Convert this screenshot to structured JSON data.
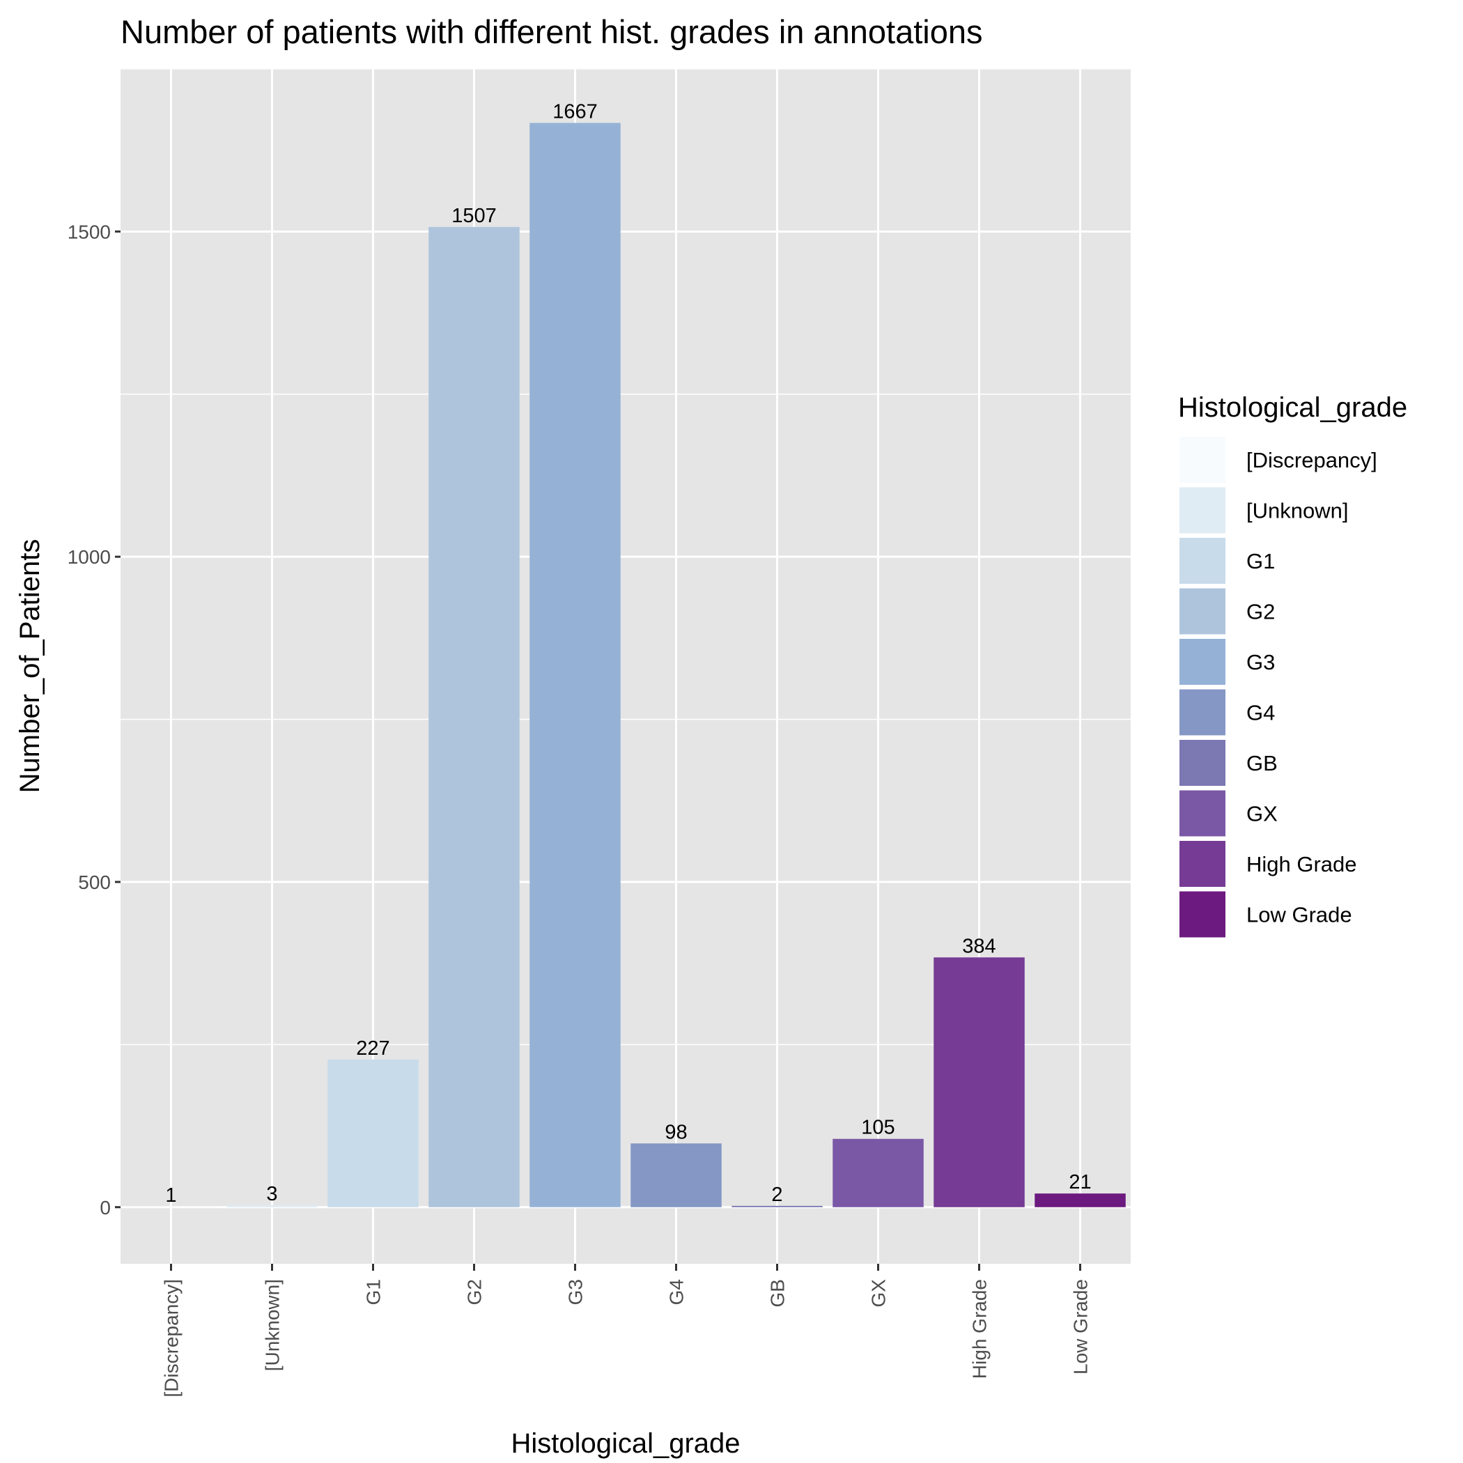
{
  "chart_data": {
    "type": "bar",
    "title": "Number of patients with different hist. grades in annotations",
    "xlabel": "Histological_grade",
    "ylabel": "Number_of_Patients",
    "categories": [
      "[Discrepancy]",
      "[Unknown]",
      "G1",
      "G2",
      "G3",
      "G4",
      "GB",
      "GX",
      "High Grade",
      "Low Grade"
    ],
    "values": [
      1,
      3,
      227,
      1507,
      1667,
      98,
      2,
      105,
      384,
      21
    ],
    "colors": [
      "#f7fbfd",
      "#e0ecf4",
      "#c8dbea",
      "#aec4dc",
      "#95b2d6",
      "#8497c5",
      "#7b78b2",
      "#7a58a6",
      "#763b94",
      "#6c1a7f"
    ],
    "ylim": [
      -87,
      1751
    ],
    "yticks": [
      0,
      500,
      1000,
      1500
    ],
    "grid": true,
    "panel_background": "#e5e5e5",
    "legend": {
      "title": "Histological_grade",
      "position": "right",
      "entries": [
        "[Discrepancy]",
        "[Unknown]",
        "G1",
        "G2",
        "G3",
        "G4",
        "GB",
        "GX",
        "High Grade",
        "Low Grade"
      ]
    }
  }
}
